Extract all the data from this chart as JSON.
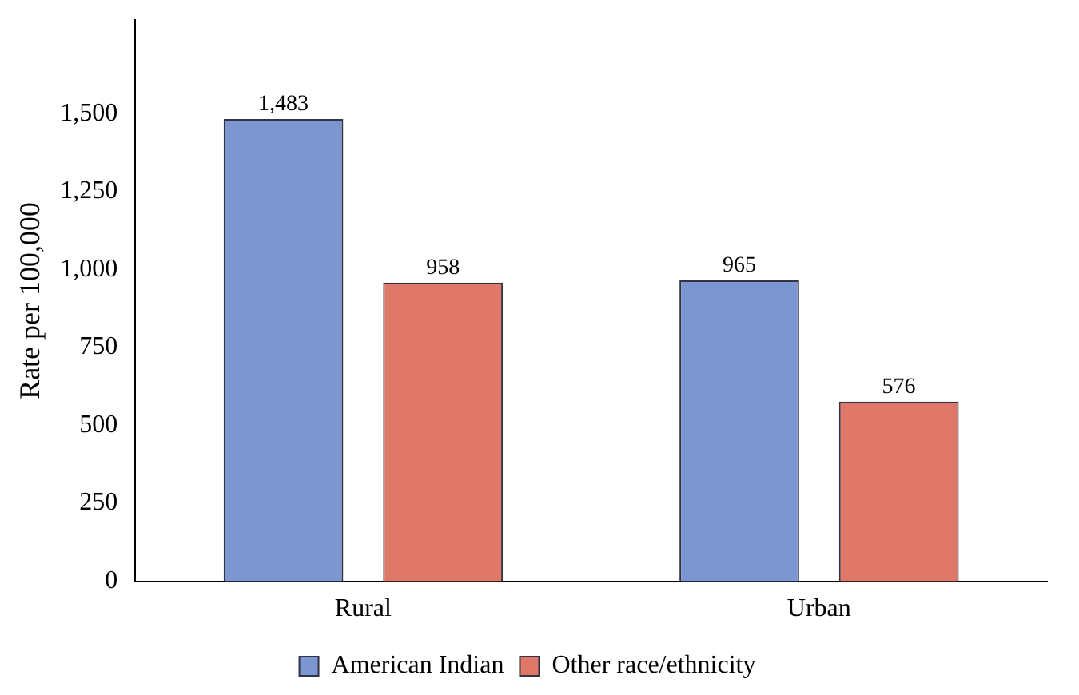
{
  "chart_data": {
    "type": "bar",
    "ylabel": "Rate per 100,000",
    "categories": [
      "Rural",
      "Urban"
    ],
    "series": [
      {
        "name": "American Indian",
        "color": "#7b96d0",
        "values": [
          1483,
          965
        ],
        "value_labels": [
          "1,483",
          "965"
        ]
      },
      {
        "name": "Other race/ethnicity",
        "color": "#e0786a",
        "values": [
          958,
          576
        ],
        "value_labels": [
          "958",
          "576"
        ]
      }
    ],
    "ylim": [
      0,
      1800
    ],
    "yticks": [
      0,
      250,
      500,
      750,
      {
        "value": 1000,
        "label": "1,000"
      },
      {
        "value": 1250,
        "label": "1,250"
      },
      {
        "value": 1500,
        "label": "1,500"
      }
    ],
    "grid": false,
    "legend": "bottom"
  }
}
